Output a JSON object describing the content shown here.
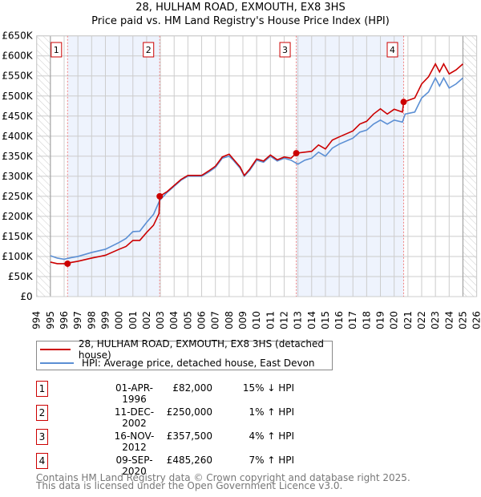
{
  "chart_data": {
    "type": "line",
    "title": "28, HULHAM ROAD, EXMOUTH, EX8 3HS",
    "subtitle": "Price paid vs. HM Land Registry's House Price Index (HPI)",
    "xlim": [
      1994,
      2026
    ],
    "ylim": [
      0,
      650000
    ],
    "x_ticks": [
      "1994",
      "1995",
      "1996",
      "1997",
      "1998",
      "1999",
      "2000",
      "2001",
      "2002",
      "2003",
      "2004",
      "2005",
      "2006",
      "2007",
      "2008",
      "2009",
      "2010",
      "2011",
      "2012",
      "2013",
      "2014",
      "2015",
      "2016",
      "2017",
      "2018",
      "2019",
      "2020",
      "2021",
      "2022",
      "2023",
      "2024",
      "2025",
      "2026"
    ],
    "y_ticks": [
      "£0",
      "£50K",
      "£100K",
      "£150K",
      "£200K",
      "£250K",
      "£300K",
      "£350K",
      "£400K",
      "£450K",
      "£500K",
      "£550K",
      "£600K",
      "£650K"
    ],
    "grid": true,
    "hatched_ranges": [
      [
        1994,
        1995
      ],
      [
        2025,
        2026
      ]
    ],
    "shaded_ranges": [
      [
        1996.25,
        2002.95
      ],
      [
        2012.88,
        2020.69
      ]
    ],
    "series": [
      {
        "name": "28, HULHAM ROAD, EXMOUTH, EX8 3HS (detached house)",
        "color": "#cc0000",
        "x": [
          1995,
          1995.5,
          1996,
          1996.25,
          1996.5,
          1997,
          1998,
          1999,
          2000,
          2000.5,
          2001,
          2001.5,
          2002,
          2002.5,
          2002.9,
          2002.95,
          2003.5,
          2004,
          2004.5,
          2005,
          2006,
          2006.5,
          2007,
          2007.5,
          2008,
          2008.3,
          2008.8,
          2009.1,
          2009.5,
          2010,
          2010.5,
          2011,
          2011.5,
          2012,
          2012.5,
          2012.88,
          2013.5,
          2014,
          2014.5,
          2015,
          2015.5,
          2016,
          2017,
          2017.5,
          2018,
          2018.5,
          2019,
          2019.5,
          2020,
          2020.6,
          2020.69,
          2021.5,
          2022,
          2022.5,
          2023,
          2023.3,
          2023.6,
          2024,
          2024.5,
          2025
        ],
        "y": [
          86,
          82,
          82,
          82,
          85,
          88,
          96,
          103,
          118,
          125,
          140,
          140,
          160,
          178,
          207,
          250,
          262,
          277,
          292,
          302,
          302,
          313,
          325,
          348,
          355,
          343,
          323,
          302,
          318,
          343,
          338,
          353,
          341,
          348,
          345,
          357.5,
          360,
          362,
          378,
          368,
          390,
          398,
          413,
          430,
          437,
          455,
          468,
          455,
          467,
          460,
          485,
          495,
          530,
          548,
          580,
          560,
          580,
          555,
          565,
          580
        ]
      },
      {
        "name": "HPI: Average price, detached house, East Devon",
        "color": "#5b8fd4",
        "x": [
          1995,
          1995.5,
          1996,
          1996.5,
          1997,
          1998,
          1999,
          2000,
          2000.5,
          2001,
          2001.5,
          2002,
          2002.5,
          2002.95,
          2003.5,
          2004,
          2004.5,
          2005,
          2006,
          2006.5,
          2007,
          2007.5,
          2008,
          2008.3,
          2008.8,
          2009.1,
          2009.5,
          2010,
          2010.5,
          2011,
          2011.5,
          2012,
          2012.5,
          2013,
          2013.5,
          2014,
          2014.5,
          2015,
          2015.5,
          2016,
          2017,
          2017.5,
          2018,
          2018.5,
          2019,
          2019.5,
          2020,
          2020.6,
          2020.8,
          2021.5,
          2022,
          2022.5,
          2023,
          2023.3,
          2023.6,
          2024,
          2024.5,
          2025
        ],
        "y": [
          102,
          96,
          93,
          97,
          100,
          110,
          118,
          135,
          145,
          162,
          163,
          185,
          205,
          240,
          260,
          275,
          290,
          300,
          300,
          310,
          322,
          345,
          350,
          340,
          320,
          300,
          315,
          340,
          335,
          350,
          338,
          345,
          340,
          330,
          340,
          345,
          360,
          350,
          370,
          380,
          395,
          410,
          415,
          430,
          440,
          430,
          440,
          435,
          455,
          460,
          495,
          510,
          545,
          525,
          545,
          520,
          530,
          545
        ]
      }
    ],
    "y_unit": "£K",
    "sales": [
      {
        "num": "1",
        "x": 1996.25,
        "y": 82,
        "date": "01-APR-1996",
        "price": "£82,000",
        "hpi": "15% ↓ HPI"
      },
      {
        "num": "2",
        "x": 2002.95,
        "y": 250,
        "date": "11-DEC-2002",
        "price": "£250,000",
        "hpi": "1% ↑ HPI"
      },
      {
        "num": "3",
        "x": 2012.88,
        "y": 357.5,
        "date": "16-NOV-2012",
        "price": "£357,500",
        "hpi": "4% ↑ HPI"
      },
      {
        "num": "4",
        "x": 2020.69,
        "y": 485.26,
        "date": "09-SEP-2020",
        "price": "£485,260",
        "hpi": "7% ↑ HPI"
      }
    ]
  },
  "legend": {
    "property": "28, HULHAM ROAD, EXMOUTH, EX8 3HS (detached house)",
    "hpi": "HPI: Average price, detached house, East Devon"
  },
  "footer": {
    "line1": "Contains HM Land Registry data © Crown copyright and database right 2025.",
    "line2": "This data is licensed under the Open Government Licence v3.0."
  }
}
